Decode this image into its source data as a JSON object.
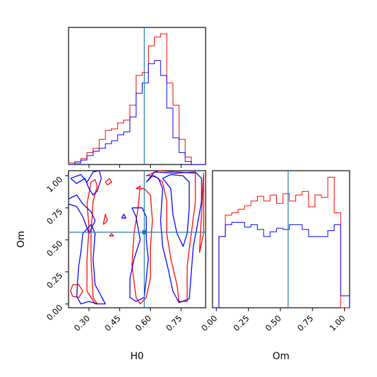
{
  "chart_data": {
    "type": "corner",
    "parameters": [
      "H0",
      "Om"
    ],
    "truth": {
      "H0": 0.57,
      "Om": 0.56
    },
    "series_colors": {
      "red": "#ff0000",
      "blue": "#0000ff",
      "truth": "#1f77b4"
    },
    "axes": {
      "H0": {
        "range": [
          0.2,
          0.87
        ],
        "ticks": [
          "0.30",
          "0.45",
          "0.60",
          "0.75"
        ],
        "tick_values": [
          0.3,
          0.45,
          0.6,
          0.75
        ]
      },
      "Om": {
        "range": [
          -0.03,
          1.04
        ],
        "ticks": [
          "0.00",
          "0.25",
          "0.50",
          "0.75",
          "1.00"
        ],
        "tick_values": [
          0.0,
          0.25,
          0.5,
          0.75,
          1.0
        ]
      }
    },
    "hist_H0": {
      "bin_edges": [
        0.2,
        0.23,
        0.26,
        0.29,
        0.32,
        0.35,
        0.38,
        0.41,
        0.44,
        0.47,
        0.5,
        0.53,
        0.56,
        0.59,
        0.62,
        0.65,
        0.68,
        0.71,
        0.74,
        0.77,
        0.8,
        0.83,
        0.87
      ],
      "red": [
        1,
        2,
        4,
        8,
        11,
        17,
        23,
        24,
        28,
        30,
        40,
        60,
        62,
        80,
        86,
        88,
        55,
        40,
        17,
        5,
        0,
        0
      ],
      "blue": [
        0,
        1,
        3,
        6,
        9,
        11,
        14,
        16,
        20,
        22,
        32,
        48,
        55,
        68,
        70,
        60,
        38,
        18,
        8,
        2,
        0,
        0
      ]
    },
    "hist_Om": {
      "bin_edges": [
        -0.03,
        0.02,
        0.07,
        0.12,
        0.17,
        0.22,
        0.27,
        0.32,
        0.37,
        0.42,
        0.47,
        0.52,
        0.57,
        0.62,
        0.67,
        0.72,
        0.77,
        0.82,
        0.87,
        0.92,
        0.97,
        1.04
      ],
      "red": [
        0,
        60,
        78,
        80,
        83,
        86,
        90,
        94,
        90,
        95,
        88,
        96,
        90,
        95,
        98,
        85,
        95,
        93,
        110,
        80,
        0
      ],
      "blue": [
        0,
        60,
        70,
        72,
        72,
        68,
        70,
        66,
        60,
        64,
        67,
        66,
        70,
        70,
        66,
        60,
        60,
        60,
        65,
        70,
        10
      ]
    },
    "contours_2d": {
      "red": [
        [
          [
            0.22,
            0.15
          ],
          [
            0.25,
            0.15
          ],
          [
            0.27,
            0.1
          ],
          [
            0.25,
            0.05
          ],
          [
            0.22,
            0.06
          ],
          [
            0.21,
            0.1
          ],
          [
            0.22,
            0.15
          ]
        ],
        [
          [
            0.31,
            0.95
          ],
          [
            0.33,
            0.97
          ],
          [
            0.34,
            0.92
          ],
          [
            0.32,
            0.8
          ],
          [
            0.31,
            0.55
          ],
          [
            0.31,
            0.35
          ],
          [
            0.32,
            0.05
          ],
          [
            0.34,
            0.0
          ],
          [
            0.33,
            0.0
          ],
          [
            0.29,
            0.1
          ],
          [
            0.29,
            0.35
          ],
          [
            0.3,
            0.6
          ],
          [
            0.29,
            0.78
          ],
          [
            0.31,
            0.95
          ]
        ],
        [
          [
            0.53,
            0.9
          ],
          [
            0.55,
            0.92
          ],
          [
            0.54,
            0.75
          ],
          [
            0.52,
            0.55
          ],
          [
            0.51,
            0.3
          ],
          [
            0.53,
            0.05
          ],
          [
            0.55,
            0.0
          ],
          [
            0.58,
            0.05
          ],
          [
            0.6,
            0.2
          ],
          [
            0.6,
            0.45
          ],
          [
            0.61,
            0.65
          ],
          [
            0.6,
            0.85
          ],
          [
            0.57,
            0.9
          ],
          [
            0.53,
            0.9
          ]
        ],
        [
          [
            0.58,
            1.0
          ],
          [
            0.62,
            1.0
          ],
          [
            0.66,
            0.95
          ],
          [
            0.68,
            0.8
          ],
          [
            0.68,
            0.55
          ],
          [
            0.7,
            0.35
          ],
          [
            0.73,
            0.15
          ],
          [
            0.74,
            0.02
          ],
          [
            0.78,
            0.02
          ],
          [
            0.78,
            0.3
          ],
          [
            0.8,
            0.55
          ],
          [
            0.82,
            0.8
          ],
          [
            0.82,
            1.02
          ],
          [
            0.64,
            1.04
          ],
          [
            0.58,
            1.0
          ]
        ],
        [
          [
            0.38,
            0.95
          ],
          [
            0.4,
            0.98
          ],
          [
            0.41,
            0.95
          ],
          [
            0.39,
            0.93
          ],
          [
            0.38,
            0.95
          ]
        ],
        [
          [
            0.37,
            0.62
          ],
          [
            0.39,
            0.65
          ],
          [
            0.38,
            0.7
          ],
          [
            0.37,
            0.62
          ]
        ],
        [
          [
            0.4,
            0.53
          ],
          [
            0.42,
            0.53
          ],
          [
            0.41,
            0.55
          ],
          [
            0.4,
            0.53
          ]
        ],
        [
          [
            0.84,
            0.4
          ],
          [
            0.86,
            0.55
          ],
          [
            0.86,
            1.02
          ],
          [
            0.84,
            0.4
          ]
        ]
      ],
      "blue": [
        [
          [
            0.21,
            0.98
          ],
          [
            0.26,
            1.01
          ],
          [
            0.29,
            0.95
          ],
          [
            0.32,
            1.03
          ],
          [
            0.35,
            1.04
          ],
          [
            0.36,
            0.98
          ],
          [
            0.34,
            0.88
          ],
          [
            0.32,
            0.85
          ],
          [
            0.3,
            0.9
          ],
          [
            0.28,
            0.98
          ],
          [
            0.24,
            0.94
          ],
          [
            0.21,
            0.98
          ]
        ],
        [
          [
            0.2,
            0.82
          ],
          [
            0.24,
            0.85
          ],
          [
            0.27,
            0.78
          ],
          [
            0.31,
            0.72
          ],
          [
            0.33,
            0.65
          ],
          [
            0.3,
            0.55
          ],
          [
            0.27,
            0.68
          ],
          [
            0.24,
            0.76
          ],
          [
            0.2,
            0.78
          ]
        ],
        [
          [
            0.25,
            0.3
          ],
          [
            0.24,
            0.06
          ],
          [
            0.26,
            0.0
          ],
          [
            0.3,
            0.02
          ],
          [
            0.34,
            0.0
          ],
          [
            0.38,
            0.0
          ],
          [
            0.36,
            0.06
          ],
          [
            0.33,
            0.15
          ],
          [
            0.32,
            0.35
          ],
          [
            0.33,
            0.55
          ],
          [
            0.31,
            0.62
          ],
          [
            0.27,
            0.55
          ],
          [
            0.26,
            0.4
          ],
          [
            0.25,
            0.3
          ]
        ],
        [
          [
            0.51,
            0.75
          ],
          [
            0.53,
            0.68
          ],
          [
            0.55,
            0.5
          ],
          [
            0.52,
            0.35
          ],
          [
            0.5,
            0.2
          ],
          [
            0.5,
            0.05
          ],
          [
            0.53,
            0.02
          ],
          [
            0.57,
            0.05
          ],
          [
            0.58,
            0.2
          ],
          [
            0.59,
            0.35
          ],
          [
            0.58,
            0.5
          ],
          [
            0.58,
            0.68
          ],
          [
            0.56,
            0.75
          ],
          [
            0.51,
            0.75
          ]
        ],
        [
          [
            0.58,
            0.95
          ],
          [
            0.61,
            1.0
          ],
          [
            0.64,
            0.98
          ],
          [
            0.66,
            0.9
          ],
          [
            0.65,
            0.65
          ],
          [
            0.66,
            0.45
          ],
          [
            0.69,
            0.25
          ],
          [
            0.71,
            0.1
          ],
          [
            0.74,
            0.01
          ],
          [
            0.79,
            0.04
          ],
          [
            0.8,
            0.25
          ],
          [
            0.81,
            0.45
          ],
          [
            0.83,
            0.62
          ],
          [
            0.85,
            0.8
          ],
          [
            0.85,
            0.98
          ],
          [
            0.82,
            1.03
          ],
          [
            0.72,
            1.02
          ],
          [
            0.62,
            1.03
          ],
          [
            0.58,
            0.95
          ]
        ],
        [
          [
            0.66,
            0.98
          ],
          [
            0.7,
            0.9
          ],
          [
            0.71,
            0.7
          ],
          [
            0.73,
            0.55
          ],
          [
            0.76,
            0.45
          ],
          [
            0.78,
            0.55
          ],
          [
            0.79,
            0.75
          ],
          [
            0.79,
            0.95
          ],
          [
            0.76,
            1.0
          ],
          [
            0.7,
            1.01
          ],
          [
            0.66,
            0.98
          ]
        ],
        [
          [
            0.46,
            0.67
          ],
          [
            0.48,
            0.67
          ],
          [
            0.47,
            0.7
          ],
          [
            0.46,
            0.67
          ]
        ]
      ]
    },
    "labels": {
      "x_bottom_left": "H0",
      "x_bottom_right": "Om",
      "y_left": "Om"
    },
    "grid": false,
    "legend": "none"
  }
}
